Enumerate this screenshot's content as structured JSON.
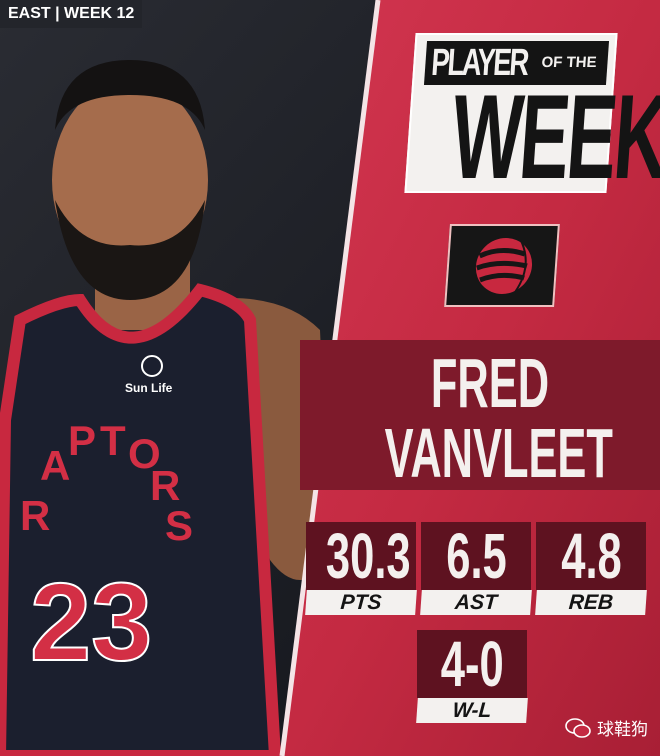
{
  "header": {
    "conference_week": "EAST | WEEK 12"
  },
  "title": {
    "line1": "PLAYER",
    "line2": "OF THE",
    "line3": "WEEK"
  },
  "team": {
    "logo": "raptors-claw-basketball-icon",
    "accent": "#c8283f",
    "dark": "#5e1220"
  },
  "player": {
    "first_name": "FRED",
    "last_name": "VANVLEET",
    "jersey_number": "23",
    "jersey_text": "RAPTORS",
    "sponsor": "Sun Life"
  },
  "stats": [
    {
      "value": "30.3",
      "label": "PTS"
    },
    {
      "value": "6.5",
      "label": "AST"
    },
    {
      "value": "4.8",
      "label": "REB"
    }
  ],
  "record": {
    "value": "4-0",
    "label": "W-L"
  },
  "watermark": {
    "icon": "wechat-icon",
    "text": "球鞋狗"
  }
}
